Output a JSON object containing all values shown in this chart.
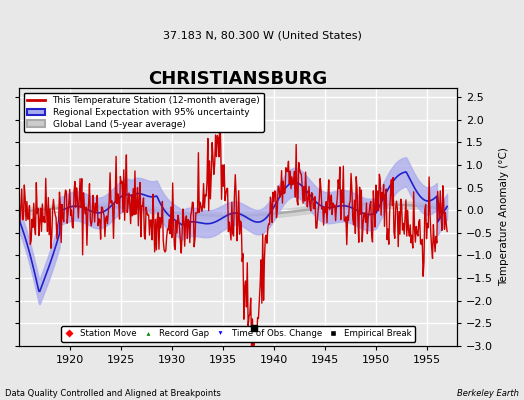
{
  "title": "CHRISTIANSBURG",
  "subtitle": "37.183 N, 80.300 W (United States)",
  "xlabel_bottom": "Data Quality Controlled and Aligned at Breakpoints",
  "xlabel_right": "Berkeley Earth",
  "ylabel_right": "Temperature Anomaly (°C)",
  "xlim": [
    1915,
    1958
  ],
  "ylim": [
    -3,
    2.7
  ],
  "yticks": [
    -3,
    -2.5,
    -2,
    -1.5,
    -1,
    -0.5,
    0,
    0.5,
    1,
    1.5,
    2,
    2.5
  ],
  "xticks": [
    1920,
    1925,
    1930,
    1935,
    1940,
    1945,
    1950,
    1955
  ],
  "background_color": "#e8e8e8",
  "plot_bg_color": "#e8e8e8",
  "grid_color": "#ffffff",
  "red_line_color": "#cc0000",
  "blue_line_color": "#2222cc",
  "blue_fill_color": "#aaaaee",
  "gray_line_color": "#aaaaaa",
  "gray_fill_color": "#cccccc",
  "empirical_break_x": 1938.0,
  "empirical_break_y": -2.6,
  "legend_labels": [
    "This Temperature Station (12-month average)",
    "Regional Expectation with 95% uncertainty",
    "Global Land (5-year average)"
  ],
  "bottom_legend": [
    "Station Move",
    "Record Gap",
    "Time of Obs. Change",
    "Empirical Break"
  ]
}
